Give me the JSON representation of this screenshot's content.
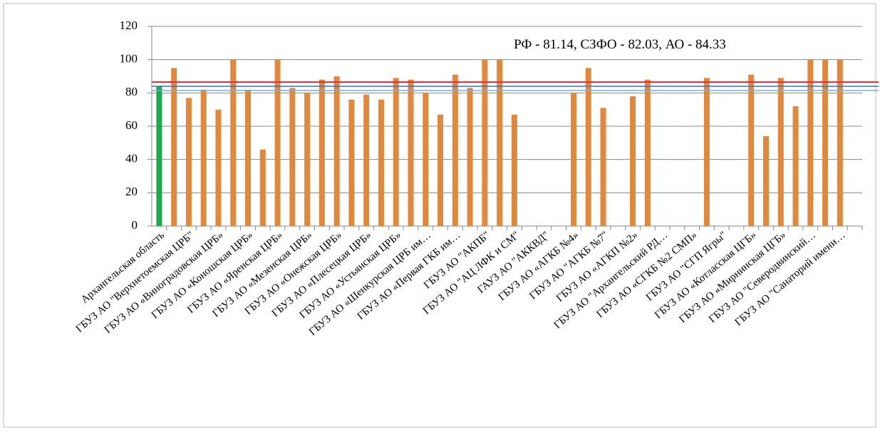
{
  "chart_data": {
    "type": "bar",
    "annotation": "РФ - 81.14, СЗФО - 82.03, АО - 84.33",
    "categories": [
      "Архангельская область",
      null,
      "ГБУЗ АО \"Верхнетоемская ЦРБ\"",
      null,
      "ГБУЗ АО «Виноградовская ЦРБ»",
      null,
      "ГБУЗ АО «Коношская ЦРБ»",
      null,
      "ГБУЗ АО «Яренская ЦРБ»",
      null,
      "ГБУЗ АО «Мезенская ЦРБ»",
      null,
      "ГБУЗ АО «Онежская ЦРБ»",
      null,
      "ГБУЗ АО «Плесецкая ЦРБ»",
      null,
      "ГБУЗ АО «Устьянская ЦРБ»",
      null,
      "ГБУЗ АО «Шенкурская ЦРБ им…",
      null,
      "ГБУЗ АО «Первая ГКБ им…",
      null,
      "ГБУЗ АО \"АКПБ\"",
      null,
      "ГБУЗ АО \"АЦ ЛФК и СМ\"",
      null,
      "ГАУЗ АО \"АККВД\"",
      null,
      "ГБУЗ АО «АГКБ №4»",
      null,
      "ГБУЗ АО \"АГКБ №7\"",
      null,
      "ГБУЗ АО «АГКП №2»",
      null,
      "ГБУЗ АО \"Архангельский РД…",
      null,
      "ГБУЗ АО «СГКБ №2 СМП»",
      null,
      "ГБУЗ АО \"СГП Ягры\"",
      null,
      "ГБУЗ АО «Котласская ЦГБ»",
      null,
      "ГБУЗ АО «Мирнинская ЦГБ»",
      null,
      "ГБУЗ АО \"Северодвинский…",
      null,
      "ГБУЗ АО \"Санаторий имени…",
      null
    ],
    "values": [
      84,
      95,
      77,
      82,
      70,
      100,
      82,
      46,
      100,
      83,
      80,
      88,
      90,
      76,
      79,
      76,
      89,
      88,
      80,
      67,
      91,
      83,
      100,
      100,
      67,
      null,
      null,
      null,
      80,
      95,
      71,
      null,
      78,
      88,
      null,
      null,
      null,
      89,
      null,
      null,
      91,
      54,
      89,
      72,
      100,
      100,
      100,
      null
    ],
    "colors": [
      "#1fa84e",
      "#e0893d",
      "#e0893d",
      "#e0893d",
      "#e0893d",
      "#e0893d",
      "#e0893d",
      "#e0893d",
      "#e0893d",
      "#e0893d",
      "#e0893d",
      "#e0893d",
      "#e0893d",
      "#e0893d",
      "#e0893d",
      "#e0893d",
      "#e0893d",
      "#e0893d",
      "#e0893d",
      "#e0893d",
      "#e0893d",
      "#e0893d",
      "#e0893d",
      "#e0893d",
      "#e0893d",
      "#e0893d",
      "#e0893d",
      "#e0893d",
      "#e0893d",
      "#e0893d",
      "#e0893d",
      "#e0893d",
      "#e0893d",
      "#e0893d",
      "#e0893d",
      "#e0893d",
      "#e0893d",
      "#e0893d",
      "#e0893d",
      "#e0893d",
      "#e0893d",
      "#e0893d",
      "#e0893d",
      "#e0893d",
      "#e0893d",
      "#e0893d",
      "#e0893d",
      "#e0893d"
    ],
    "reference_lines": [
      {
        "value": 86.5,
        "color": "#e8262b"
      },
      {
        "value": 84,
        "color": "#3b6fd0"
      },
      {
        "value": 81.5,
        "color": "#7aaee0"
      }
    ],
    "ylim": [
      0,
      120
    ],
    "yticks": [
      0,
      20,
      40,
      60,
      80,
      100,
      120
    ],
    "grid": true
  }
}
